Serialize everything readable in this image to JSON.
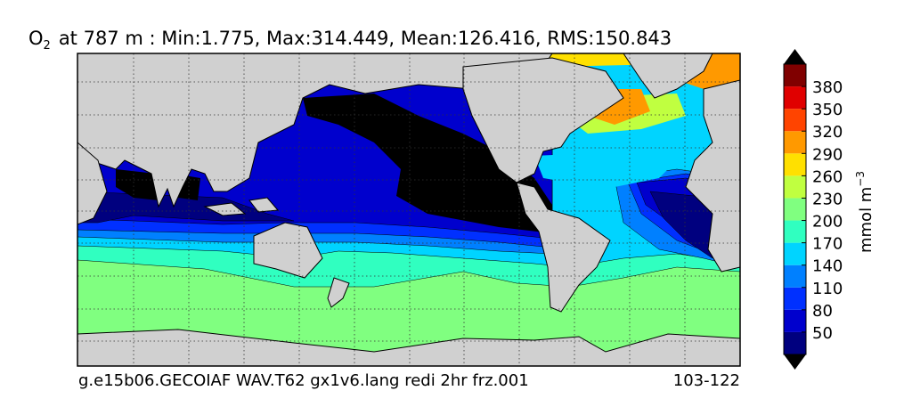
{
  "title": {
    "symbol": "O",
    "subscript": "2",
    "text": "at 787 m : Min:1.775, Max:314.449, Mean:126.416, RMS:150.843"
  },
  "footer": {
    "left": "g.e15b06.GECOIAF WAV.T62 gx1v6.lang redi 2hr frz.001",
    "right": "103-122"
  },
  "colorbar": {
    "label": "mmol m",
    "label_exponent": "−3",
    "lim": [
      20,
      410
    ],
    "ticks": [
      50,
      80,
      110,
      140,
      170,
      200,
      230,
      260,
      290,
      320,
      350,
      380
    ],
    "colors": [
      "#00007f",
      "#0000cd",
      "#0030ff",
      "#0080ff",
      "#00d4ff",
      "#30ffc0",
      "#80ff80",
      "#c0ff40",
      "#ffe000",
      "#ff9900",
      "#ff4400",
      "#e00000",
      "#800000"
    ]
  }
}
